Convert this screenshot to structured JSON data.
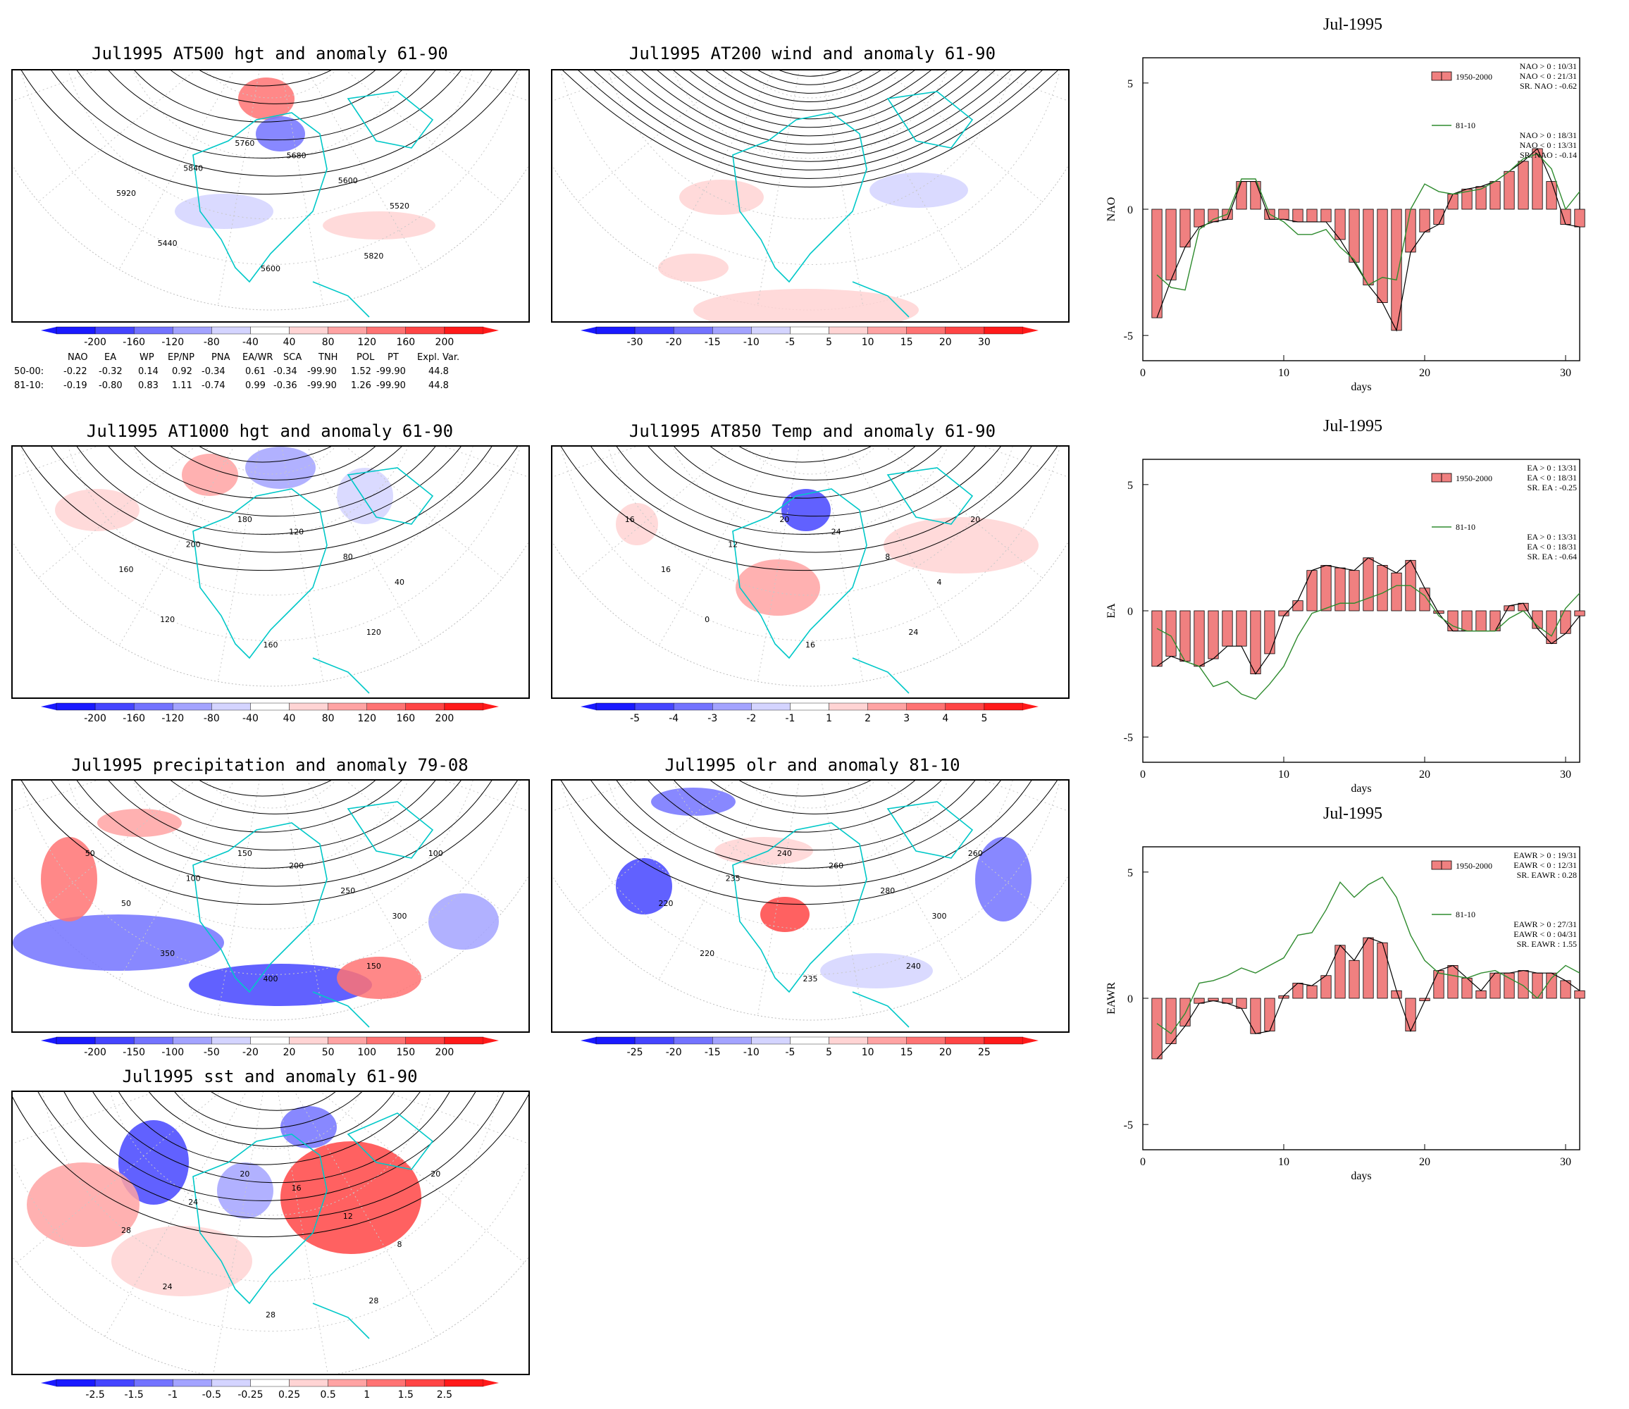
{
  "colors": {
    "blue_scale": [
      "#1a1aff",
      "#4545ff",
      "#7373ff",
      "#a3a3ff",
      "#d4d4ff"
    ],
    "red_scale": [
      "#ffd4d4",
      "#ffa3a3",
      "#ff7373",
      "#ff4545",
      "#ff1a1a"
    ],
    "coastline": "#00c8c8",
    "bar_fill": "#f08080",
    "line_8110": "#2e8b2e"
  },
  "maps": [
    {
      "id": "z500",
      "title": "Jul1995 AT500 hgt and anomaly 61-90",
      "cbar": [
        "-200",
        "-160",
        "-120",
        "-80",
        "-40",
        "40",
        "80",
        "120",
        "160",
        "200"
      ],
      "contours": [
        "5920",
        "5840",
        "5760",
        "5680",
        "5600",
        "5520",
        "5440",
        "5600",
        "5820"
      ]
    },
    {
      "id": "w200",
      "title": "Jul1995 AT200 wind and anomaly 61-90",
      "cbar": [
        "-30",
        "-20",
        "-15",
        "-10",
        "-5",
        "5",
        "10",
        "15",
        "20",
        "30"
      ],
      "contours": []
    },
    {
      "id": "z1000",
      "title": "Jul1995 AT1000 hgt and anomaly 61-90",
      "cbar": [
        "-200",
        "-160",
        "-120",
        "-80",
        "-40",
        "40",
        "80",
        "120",
        "160",
        "200"
      ],
      "contours": [
        "160",
        "200",
        "180",
        "120",
        "80",
        "40",
        "120",
        "160",
        "120"
      ]
    },
    {
      "id": "t850",
      "title": "Jul1995 AT850 Temp and anomaly 61-90",
      "cbar": [
        "-5",
        "-4",
        "-3",
        "-2",
        "-1",
        "1",
        "2",
        "3",
        "4",
        "5"
      ],
      "contours": [
        "16",
        "12",
        "20",
        "24",
        "8",
        "4",
        "0",
        "16",
        "24",
        "20",
        "16"
      ]
    },
    {
      "id": "prec",
      "title": "Jul1995 precipitation and anomaly 79-08",
      "cbar": [
        "-200",
        "-150",
        "-100",
        "-50",
        "-20",
        "20",
        "50",
        "100",
        "150",
        "200"
      ],
      "contours": [
        "50",
        "100",
        "150",
        "200",
        "250",
        "300",
        "350",
        "400",
        "150",
        "100",
        "50"
      ]
    },
    {
      "id": "olr",
      "title": "Jul1995 olr and anomaly 81-10",
      "cbar": [
        "-25",
        "-20",
        "-15",
        "-10",
        "-5",
        "5",
        "10",
        "15",
        "20",
        "25"
      ],
      "contours": [
        "220",
        "235",
        "240",
        "260",
        "280",
        "300",
        "220",
        "235",
        "240",
        "260"
      ]
    },
    {
      "id": "sst",
      "title": "Jul1995 sst and anomaly 61-90",
      "cbar": [
        "-2.5",
        "-1.5",
        "-1",
        "-0.5",
        "-0.25",
        "0.25",
        "0.5",
        "1",
        "1.5",
        "2.5"
      ],
      "contours": [
        "28",
        "24",
        "20",
        "16",
        "12",
        "8",
        "24",
        "28",
        "28",
        "20"
      ]
    }
  ],
  "index_table": {
    "header": [
      "NAO",
      "EA",
      "WP",
      "EP/NP",
      "PNA",
      "EA/WR",
      "SCA",
      "TNH",
      "POL",
      "PT",
      "Expl. Var."
    ],
    "rows": [
      {
        "label": "50-00:",
        "values": [
          "-0.22",
          "-0.32",
          "0.14",
          "0.92",
          "-0.34",
          "0.61",
          "-0.34",
          "-99.90",
          "1.52",
          "-99.90",
          "44.8"
        ]
      },
      {
        "label": "81-10:",
        "values": [
          "-0.19",
          "-0.80",
          "0.83",
          "1.11",
          "-0.74",
          "0.99",
          "-0.36",
          "-99.90",
          "1.26",
          "-99.90",
          "44.8"
        ]
      }
    ]
  },
  "chart_data": [
    {
      "type": "bar",
      "title": "Jul-1995",
      "xlabel": "days",
      "ylabel": "NAO",
      "xlim": [
        0,
        31
      ],
      "ylim": [
        -6,
        6
      ],
      "xticks": [
        "0",
        "10",
        "20",
        "30"
      ],
      "yticks": [
        "-5",
        "0",
        "5"
      ],
      "x": [
        1,
        2,
        3,
        4,
        5,
        6,
        7,
        8,
        9,
        10,
        11,
        12,
        13,
        14,
        15,
        16,
        17,
        18,
        19,
        20,
        21,
        22,
        23,
        24,
        25,
        26,
        27,
        28,
        29,
        30,
        31
      ],
      "series": [
        {
          "name": "1950-2000",
          "kind": "bar",
          "values": [
            -4.3,
            -2.8,
            -1.5,
            -0.7,
            -0.5,
            -0.4,
            1.1,
            1.1,
            -0.4,
            -0.4,
            -0.5,
            -0.5,
            -0.5,
            -1.2,
            -2.1,
            -3.0,
            -3.7,
            -4.8,
            -1.7,
            -0.9,
            -0.6,
            0.6,
            0.8,
            0.9,
            1.1,
            1.5,
            1.9,
            2.4,
            1.1,
            -0.6,
            -0.7
          ]
        },
        {
          "name": "81-10",
          "kind": "line",
          "values": [
            -2.6,
            -3.1,
            -3.2,
            -0.8,
            -0.4,
            -0.2,
            1.2,
            1.2,
            -0.2,
            -0.5,
            -1.0,
            -1.0,
            -0.8,
            -1.5,
            -2.0,
            -3.0,
            -2.7,
            -2.8,
            0.0,
            1.0,
            0.7,
            0.6,
            0.7,
            0.8,
            1.1,
            1.5,
            2.0,
            2.2,
            1.6,
            0.0,
            0.7
          ]
        }
      ],
      "legend": {
        "placement": "top-right",
        "text": [
          "NAO > 0 : 10/31",
          "NAO < 0 : 21/31",
          "SR. NAO : -0.62",
          "NAO > 0 : 18/31",
          "NAO < 0 : 13/31",
          "SR. NAO : -0.14"
        ]
      }
    },
    {
      "type": "bar",
      "title": "Jul-1995",
      "xlabel": "days",
      "ylabel": "EA",
      "xlim": [
        0,
        31
      ],
      "ylim": [
        -6,
        6
      ],
      "xticks": [
        "0",
        "10",
        "20",
        "30"
      ],
      "yticks": [
        "-5",
        "0",
        "5"
      ],
      "x": [
        1,
        2,
        3,
        4,
        5,
        6,
        7,
        8,
        9,
        10,
        11,
        12,
        13,
        14,
        15,
        16,
        17,
        18,
        19,
        20,
        21,
        22,
        23,
        24,
        25,
        26,
        27,
        28,
        29,
        30,
        31
      ],
      "series": [
        {
          "name": "1950-2000",
          "kind": "bar",
          "values": [
            -2.2,
            -1.8,
            -2.0,
            -2.2,
            -1.9,
            -1.4,
            -1.4,
            -2.5,
            -1.7,
            -0.2,
            0.4,
            1.6,
            1.8,
            1.7,
            1.6,
            2.1,
            1.8,
            1.5,
            2.0,
            0.9,
            -0.1,
            -0.8,
            -0.8,
            -0.8,
            -0.8,
            0.2,
            0.3,
            -0.7,
            -1.3,
            -0.9,
            -0.2
          ]
        },
        {
          "name": "81-10",
          "kind": "line",
          "values": [
            -0.7,
            -1.0,
            -2.0,
            -2.2,
            -3.0,
            -2.8,
            -3.3,
            -3.5,
            -2.9,
            -2.2,
            -1.0,
            -0.1,
            0.1,
            0.3,
            0.3,
            0.5,
            0.7,
            1.0,
            1.0,
            0.6,
            -0.2,
            -0.6,
            -0.8,
            -0.8,
            -0.8,
            -0.3,
            0.0,
            -0.6,
            -1.0,
            0.1,
            0.7
          ]
        }
      ],
      "legend": {
        "placement": "top-right",
        "text": [
          "EA > 0 : 13/31",
          "EA < 0 : 18/31",
          "SR. EA : -0.25",
          "EA > 0 : 13/31",
          "EA < 0 : 18/31",
          "SR. EA : -0.64"
        ]
      }
    },
    {
      "type": "bar",
      "title": "Jul-1995",
      "xlabel": "days",
      "ylabel": "EAWR",
      "xlim": [
        0,
        31
      ],
      "ylim": [
        -6,
        6
      ],
      "xticks": [
        "0",
        "10",
        "20",
        "30"
      ],
      "yticks": [
        "-5",
        "0",
        "5"
      ],
      "x": [
        1,
        2,
        3,
        4,
        5,
        6,
        7,
        8,
        9,
        10,
        11,
        12,
        13,
        14,
        15,
        16,
        17,
        18,
        19,
        20,
        21,
        22,
        23,
        24,
        25,
        26,
        27,
        28,
        29,
        30,
        31
      ],
      "series": [
        {
          "name": "1950-2000",
          "kind": "bar",
          "values": [
            -2.4,
            -1.8,
            -1.1,
            -0.2,
            -0.1,
            -0.2,
            -0.4,
            -1.4,
            -1.3,
            0.1,
            0.6,
            0.5,
            0.9,
            2.1,
            1.5,
            2.4,
            2.2,
            0.3,
            -1.3,
            -0.1,
            1.1,
            1.3,
            0.8,
            0.3,
            1.0,
            1.0,
            1.1,
            1.0,
            1.0,
            0.7,
            0.3
          ]
        },
        {
          "name": "81-10",
          "kind": "line",
          "values": [
            -1.0,
            -1.4,
            -0.6,
            0.6,
            0.7,
            0.9,
            1.2,
            1.0,
            1.3,
            1.6,
            2.5,
            2.6,
            3.5,
            4.6,
            4.0,
            4.5,
            4.8,
            4.0,
            2.5,
            1.5,
            1.0,
            0.9,
            0.8,
            1.0,
            1.1,
            0.8,
            0.5,
            0.0,
            0.8,
            1.3,
            1.0
          ]
        }
      ],
      "legend": {
        "placement": "top-right",
        "text": [
          "EAWR > 0 : 19/31",
          "EAWR < 0 : 12/31",
          "SR. EAWR : 0.28",
          "EAWR > 0 : 27/31",
          "EAWR < 0 : 04/31",
          "SR. EAWR : 1.55"
        ]
      }
    }
  ],
  "legend_names": [
    "1950-2000",
    "81-10"
  ]
}
